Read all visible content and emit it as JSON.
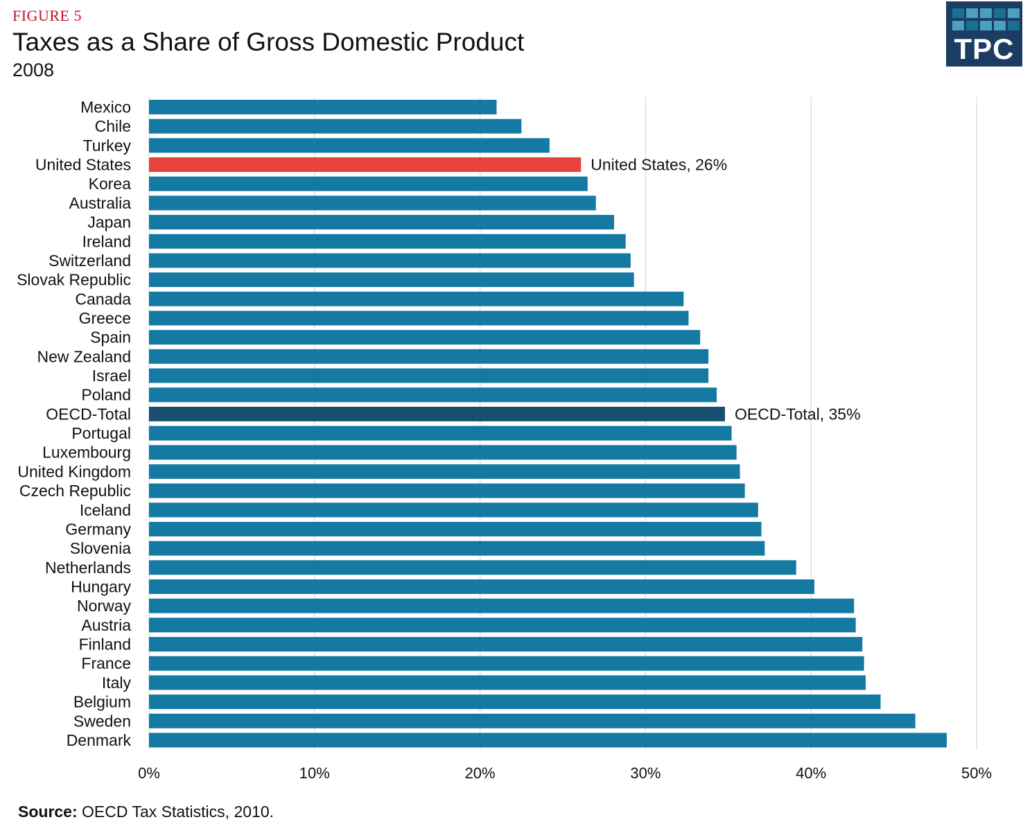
{
  "header": {
    "figure_label": "FIGURE 5",
    "title": "Taxes as a Share of Gross Domestic Product",
    "subtitle": "2008"
  },
  "logo": {
    "text": "TPC"
  },
  "source": {
    "label": "Source:",
    "text": " OECD Tax Statistics, 2010."
  },
  "colors": {
    "bar": "#1479a3",
    "highlight_us": "#e8423a",
    "highlight_oecd": "#184f6e",
    "grid": "#d9d9d9"
  },
  "chart_data": {
    "type": "bar",
    "orientation": "horizontal",
    "title": "Taxes as a Share of Gross Domestic Product",
    "subtitle": "2008",
    "xlim": [
      0,
      50
    ],
    "x_ticks": [
      0,
      10,
      20,
      30,
      40,
      50
    ],
    "x_tick_labels": [
      "0%",
      "10%",
      "20%",
      "30%",
      "40%",
      "50%"
    ],
    "grid": true,
    "categories": [
      "Mexico",
      "Chile",
      "Turkey",
      "United States",
      "Korea",
      "Australia",
      "Japan",
      "Ireland",
      "Switzerland",
      "Slovak Republic",
      "Canada",
      "Greece",
      "Spain",
      "New Zealand",
      "Israel",
      "Poland",
      "OECD-Total",
      "Portugal",
      "Luxembourg",
      "United Kingdom",
      "Czech Republic",
      "Iceland",
      "Germany",
      "Slovenia",
      "Netherlands",
      "Hungary",
      "Norway",
      "Austria",
      "Finland",
      "France",
      "Italy",
      "Belgium",
      "Sweden",
      "Denmark"
    ],
    "values": [
      21.0,
      22.5,
      24.2,
      26.1,
      26.5,
      27.0,
      28.1,
      28.8,
      29.1,
      29.3,
      32.3,
      32.6,
      33.3,
      33.8,
      33.8,
      34.3,
      34.8,
      35.2,
      35.5,
      35.7,
      36.0,
      36.8,
      37.0,
      37.2,
      39.1,
      40.2,
      42.6,
      42.7,
      43.1,
      43.2,
      43.3,
      44.2,
      46.3,
      48.2
    ],
    "highlights": [
      {
        "category": "United States",
        "label": "United States, 26%",
        "color_key": "highlight_us"
      },
      {
        "category": "OECD-Total",
        "label": "OECD-Total, 35%",
        "color_key": "highlight_oecd"
      }
    ]
  }
}
